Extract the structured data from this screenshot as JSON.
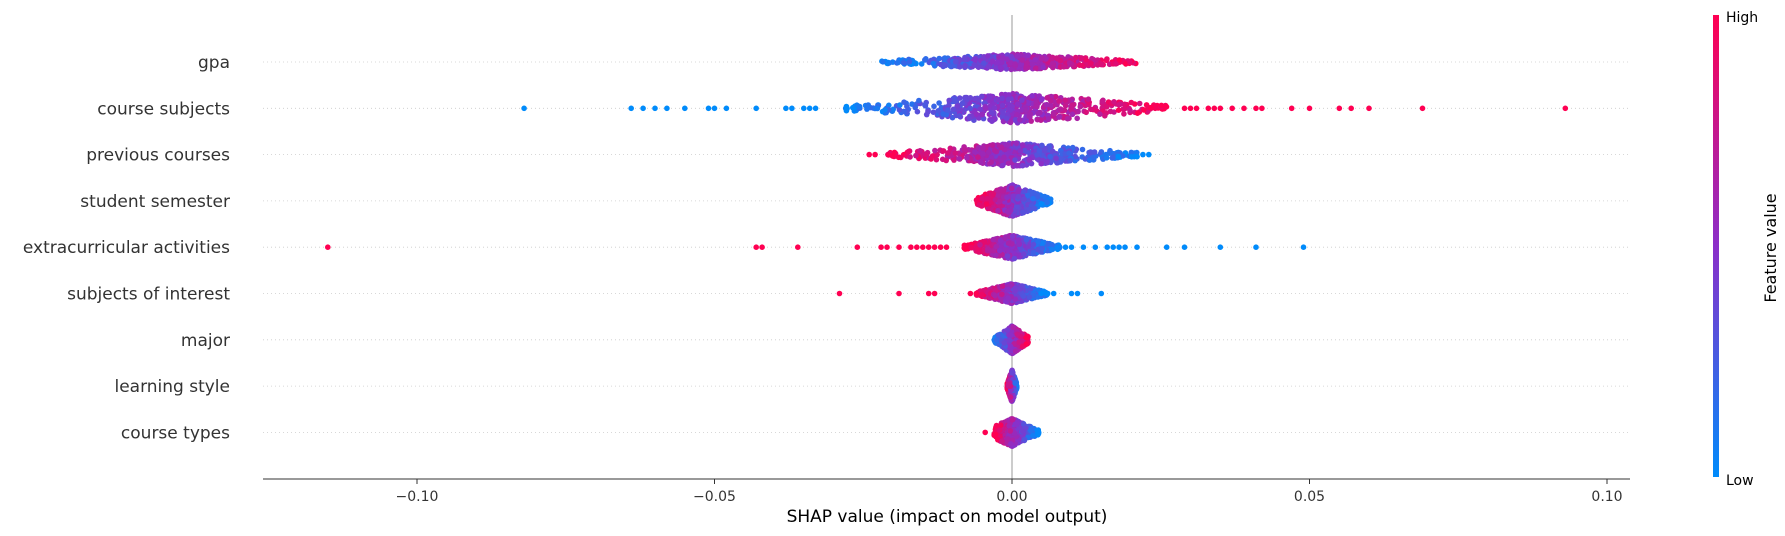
{
  "chart_data": {
    "type": "scatter",
    "subtype": "shap-beeswarm",
    "title": "",
    "xlabel": "SHAP value (impact on model output)",
    "ylabel": "",
    "xlim": [
      -0.125,
      0.104
    ],
    "xticks": [
      -0.1,
      -0.05,
      0.0,
      0.05,
      0.1
    ],
    "xtick_labels": [
      "−0.10",
      "−0.05",
      "0.00",
      "0.05",
      "0.10"
    ],
    "grid": "horizontal dotted per feature",
    "colorbar": {
      "title": "Feature value",
      "high_label": "High",
      "low_label": "Low",
      "high_color": "#ff0052",
      "mid_color": "#8b2fc9",
      "low_color": "#008bfb"
    },
    "features": [
      {
        "name": "gpa",
        "center": [
          0.0,
          0.0
        ],
        "spread": 0.0115,
        "bulk_range": [
          -0.022,
          0.021
        ],
        "max_width": 8,
        "trend": "high-right",
        "outliers": []
      },
      {
        "name": "course subjects",
        "center": [
          0.0,
          0.0
        ],
        "spread": 0.0125,
        "bulk_range": [
          -0.028,
          0.026
        ],
        "max_width": 15,
        "trend": "high-right",
        "outliers": [
          -0.082,
          -0.064,
          -0.062,
          -0.06,
          -0.058,
          -0.055,
          -0.051,
          -0.05,
          -0.048,
          -0.043,
          -0.038,
          -0.037,
          -0.035,
          -0.034,
          -0.033,
          0.029,
          0.03,
          0.031,
          0.033,
          0.034,
          0.035,
          0.037,
          0.039,
          0.041,
          0.042,
          0.047,
          0.05,
          0.055,
          0.057,
          0.06,
          0.069,
          0.093
        ]
      },
      {
        "name": "previous courses",
        "center": [
          0.0,
          0.0
        ],
        "spread": 0.0105,
        "bulk_range": [
          -0.021,
          0.021
        ],
        "max_width": 12,
        "trend": "high-left",
        "outliers": [
          -0.024,
          -0.023,
          0.022,
          0.023
        ]
      },
      {
        "name": "student semester",
        "center": [
          0.0,
          0.0
        ],
        "spread": 0.0038,
        "bulk_range": [
          -0.006,
          0.0065
        ],
        "max_width": 16,
        "trend": "high-left",
        "outliers": []
      },
      {
        "name": "extracurricular activities",
        "center": [
          0.0,
          0.0
        ],
        "spread": 0.0055,
        "bulk_range": [
          -0.008,
          0.008
        ],
        "max_width": 12,
        "trend": "high-left",
        "outliers": [
          -0.115,
          -0.043,
          -0.042,
          -0.036,
          -0.026,
          -0.022,
          -0.021,
          -0.019,
          -0.017,
          -0.016,
          -0.015,
          -0.014,
          -0.013,
          -0.012,
          -0.011,
          0.009,
          0.01,
          0.012,
          0.014,
          0.016,
          0.017,
          0.018,
          0.019,
          0.021,
          0.026,
          0.029,
          0.035,
          0.041,
          0.049
        ]
      },
      {
        "name": "subjects of interest",
        "center": [
          0.0,
          0.0
        ],
        "spread": 0.0028,
        "bulk_range": [
          -0.006,
          0.006
        ],
        "max_width": 10,
        "trend": "high-left",
        "outliers": [
          -0.029,
          -0.019,
          -0.014,
          -0.013,
          -0.007,
          -0.006,
          0.006,
          0.007,
          0.01,
          0.011,
          0.015
        ]
      },
      {
        "name": "major",
        "center": [
          0.0,
          0.0
        ],
        "spread": 0.0012,
        "bulk_range": [
          -0.003,
          0.0027
        ],
        "max_width": 14,
        "trend": "high-right",
        "outliers": []
      },
      {
        "name": "learning style",
        "center": [
          0.0,
          0.0
        ],
        "spread": 0.0005,
        "bulk_range": [
          -0.0008,
          0.0008
        ],
        "max_width": 16,
        "trend": "high-left",
        "outliers": []
      },
      {
        "name": "course types",
        "center": [
          0.0,
          0.0
        ],
        "spread": 0.0015,
        "bulk_range": [
          -0.003,
          0.0045
        ],
        "max_width": 14,
        "trend": "high-left",
        "outliers": [
          -0.0045
        ]
      }
    ]
  }
}
